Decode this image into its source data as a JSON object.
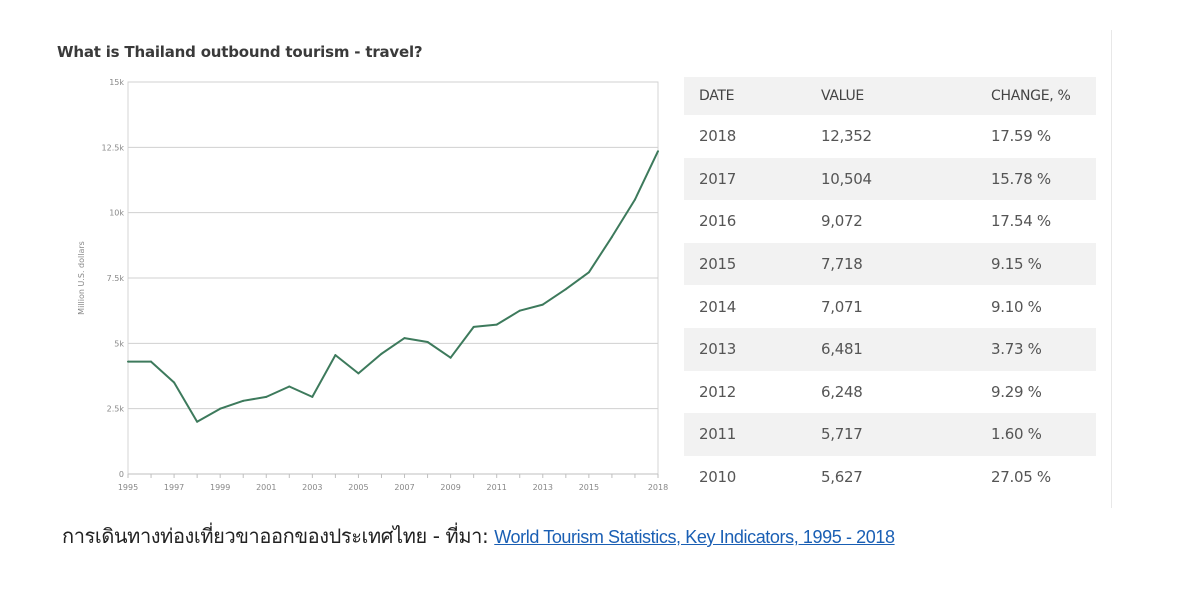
{
  "chart_data": {
    "type": "line",
    "title": "What is Thailand outbound tourism - travel?",
    "xlabel": "",
    "ylabel": "Million U.S. dollars",
    "ylim": [
      0,
      15000
    ],
    "y_ticks": [
      0,
      2500,
      5000,
      7500,
      10000,
      12500,
      15000
    ],
    "y_tick_labels": [
      "0",
      "2.5k",
      "5k",
      "7.5k",
      "10k",
      "12.5k",
      "15k"
    ],
    "x_tick_labels": [
      "1995",
      "1997",
      "1999",
      "2001",
      "2003",
      "2005",
      "2007",
      "2009",
      "2011",
      "2013",
      "2015",
      "2018"
    ],
    "x": [
      1995,
      1996,
      1997,
      1998,
      1999,
      2000,
      2001,
      2002,
      2003,
      2004,
      2005,
      2006,
      2007,
      2008,
      2009,
      2010,
      2011,
      2012,
      2013,
      2014,
      2015,
      2016,
      2017,
      2018
    ],
    "series": [
      {
        "name": "Outbound tourism - travel",
        "color": "#3d7a5c",
        "values": [
          4300,
          4300,
          3500,
          2000,
          2500,
          2800,
          2950,
          3350,
          2950,
          4550,
          3850,
          4600,
          5200,
          5050,
          4450,
          5627,
          5717,
          6248,
          6481,
          7071,
          7718,
          9072,
          10504,
          12352
        ]
      }
    ],
    "grid": true
  },
  "table": {
    "headers": [
      "DATE",
      "VALUE",
      "CHANGE, %"
    ],
    "rows": [
      [
        "2018",
        "12,352",
        "17.59 %"
      ],
      [
        "2017",
        "10,504",
        "15.78 %"
      ],
      [
        "2016",
        "9,072",
        "17.54 %"
      ],
      [
        "2015",
        "7,718",
        "9.15 %"
      ],
      [
        "2014",
        "7,071",
        "9.10 %"
      ],
      [
        "2013",
        "6,481",
        "3.73 %"
      ],
      [
        "2012",
        "6,248",
        "9.29 %"
      ],
      [
        "2011",
        "5,717",
        "1.60 %"
      ],
      [
        "2010",
        "5,627",
        "27.05 %"
      ]
    ]
  },
  "caption": {
    "text": "การเดินทางท่องเที่ยวขาออกของประเทศไทย - ที่มา: ",
    "link_text": "World Tourism Statistics, Key Indicators, 1995 - 2018"
  }
}
